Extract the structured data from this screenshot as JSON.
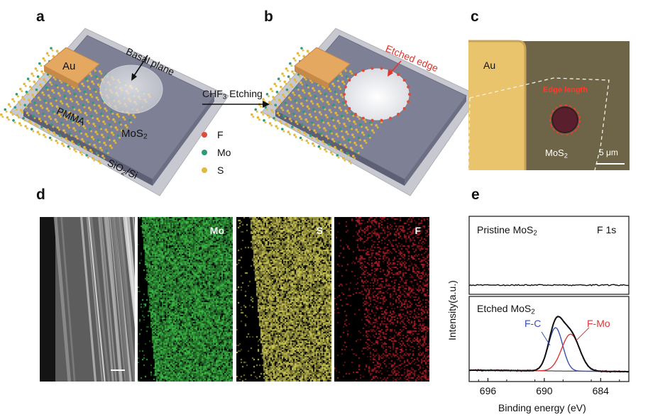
{
  "panels": {
    "a": "a",
    "b": "b",
    "c": "c",
    "d": "d",
    "e": "e"
  },
  "panel_a": {
    "au": "Au",
    "basal_plane": "Basal plane",
    "pmma": "PMMA",
    "mos2_main": "MoS",
    "mos2_sub": "2",
    "substrate_main": "SiO",
    "substrate_sub": "2",
    "substrate_rest": "/Si"
  },
  "arrow": {
    "label_main": "CHF",
    "label_sub": "3",
    "label_rest": " Etching"
  },
  "panel_b": {
    "etched_edge": "Etched edge"
  },
  "legend": [
    {
      "symbol": "F",
      "color": "#e04a3a"
    },
    {
      "symbol": "Mo",
      "color": "#2f9a7c"
    },
    {
      "symbol": "S",
      "color": "#e2b93b"
    }
  ],
  "panel_c": {
    "au": "Au",
    "edge_length": "Edge length",
    "mos2_main": "MoS",
    "mos2_sub": "2",
    "scale_bar": "5 μm"
  },
  "panel_d": {
    "maps": [
      {
        "element": "Mo",
        "color": "#3fc24a"
      },
      {
        "element": "S",
        "color": "#d7d25a"
      },
      {
        "element": "F",
        "color": "#c0202c"
      }
    ]
  },
  "chart_data": {
    "type": "line",
    "xlabel": "Binding energy (eV)",
    "ylabel": "Intensity(a.u.)",
    "xlim": [
      698,
      681
    ],
    "x_reversed": true,
    "x_ticks": [
      696,
      690,
      684
    ],
    "core_level": "F 1s",
    "panels": [
      {
        "label_main": "Pristine MoS",
        "label_sub": "2",
        "series": [
          {
            "name": "",
            "shape": "flat baseline"
          }
        ]
      },
      {
        "label_main": "Etched MoS",
        "label_sub": "2",
        "peaks": [
          {
            "name": "F-C",
            "center": 688.8,
            "color": "#3a4fb0"
          },
          {
            "name": "F-Mo",
            "center": 687.2,
            "color": "#d83838"
          }
        ],
        "envelope_color": "#111111",
        "raw_color": "#b03a6a"
      }
    ]
  }
}
